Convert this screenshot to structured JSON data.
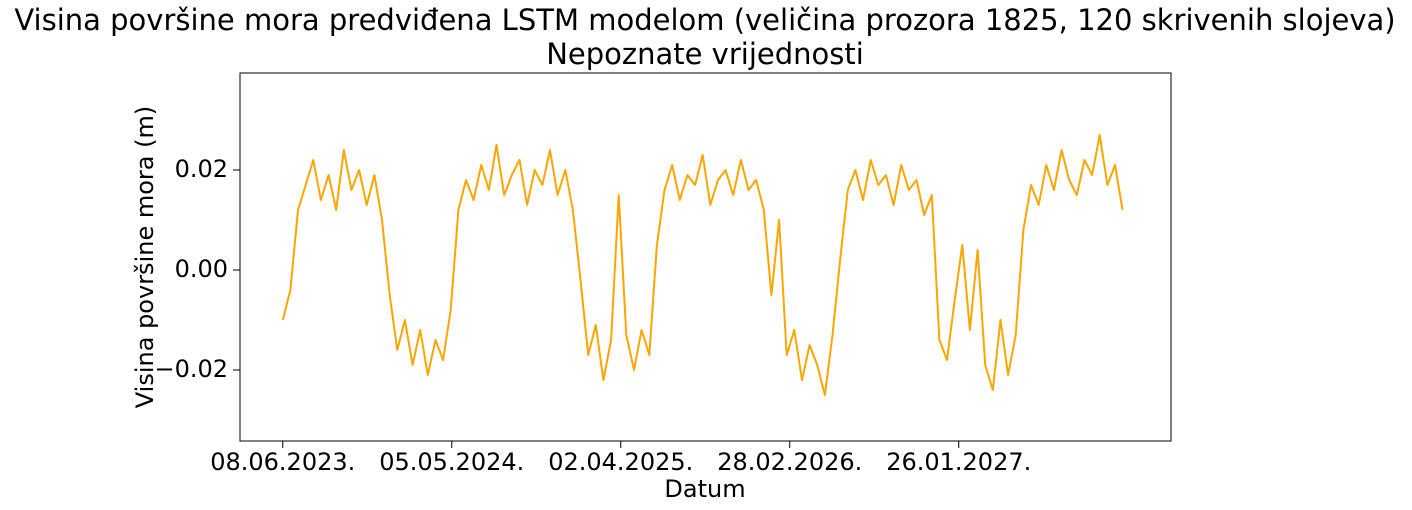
{
  "chart_data": {
    "type": "line",
    "title": "Visina površine mora predviđena LSTM modelom (veličina prozora 1825, 120 skrivenih slojeva)",
    "subtitle": "Nepoznate vrijednosti",
    "x_label": "Datum",
    "y_label": "Visina površine mora (m)",
    "x": [
      0,
      15,
      30,
      45,
      60,
      75,
      90,
      105,
      120,
      135,
      150,
      165,
      180,
      195,
      210,
      225,
      240,
      255,
      270,
      285,
      300,
      315,
      330,
      345,
      360,
      375,
      390,
      405,
      420,
      435,
      450,
      465,
      480,
      495,
      510,
      525,
      540,
      555,
      570,
      585,
      600,
      615,
      630,
      645,
      660,
      675,
      690,
      705,
      720,
      735,
      750,
      765,
      780,
      795,
      810,
      825,
      840,
      855,
      870,
      885,
      900,
      915,
      930,
      945,
      960,
      975,
      990,
      1005,
      1020,
      1035,
      1050,
      1065,
      1080,
      1095,
      1110,
      1125,
      1140,
      1155,
      1170,
      1185,
      1200,
      1215,
      1230,
      1245,
      1260,
      1275,
      1290,
      1305,
      1320,
      1335,
      1350,
      1365,
      1380,
      1395,
      1410,
      1425,
      1440,
      1455,
      1470,
      1485,
      1500,
      1515,
      1530,
      1545,
      1560,
      1575,
      1590,
      1605,
      1620,
      1635,
      1650
    ],
    "series": [
      {
        "color": "#ffa500",
        "values": [
          -0.01,
          -0.004,
          0.012,
          0.017,
          0.022,
          0.014,
          0.019,
          0.012,
          0.024,
          0.016,
          0.02,
          0.013,
          0.019,
          0.01,
          -0.005,
          -0.016,
          -0.01,
          -0.019,
          -0.012,
          -0.021,
          -0.014,
          -0.018,
          -0.008,
          0.012,
          0.018,
          0.014,
          0.021,
          0.016,
          0.025,
          0.015,
          0.019,
          0.022,
          0.013,
          0.02,
          0.017,
          0.024,
          0.015,
          0.02,
          0.012,
          -0.002,
          -0.017,
          -0.011,
          -0.022,
          -0.014,
          0.015,
          -0.013,
          -0.02,
          -0.012,
          -0.017,
          0.005,
          0.016,
          0.021,
          0.014,
          0.019,
          0.017,
          0.023,
          0.013,
          0.018,
          0.02,
          0.015,
          0.022,
          0.016,
          0.018,
          0.012,
          -0.005,
          0.01,
          -0.017,
          -0.012,
          -0.022,
          -0.015,
          -0.019,
          -0.025,
          -0.013,
          0.002,
          0.016,
          0.02,
          0.014,
          0.022,
          0.017,
          0.019,
          0.013,
          0.021,
          0.016,
          0.018,
          0.011,
          0.015,
          -0.014,
          -0.018,
          -0.006,
          0.005,
          -0.012,
          0.004,
          -0.019,
          -0.024,
          -0.01,
          -0.021,
          -0.013,
          0.008,
          0.017,
          0.013,
          0.021,
          0.016,
          0.024,
          0.018,
          0.015,
          0.022,
          0.019,
          0.027,
          0.017,
          0.021,
          0.012
        ]
      }
    ],
    "xlim": [
      -84,
      1745
    ],
    "xticks": [
      {
        "value": 0,
        "label": "08.06.2023."
      },
      {
        "value": 332,
        "label": "05.05.2024."
      },
      {
        "value": 664,
        "label": "02.04.2025."
      },
      {
        "value": 996,
        "label": "28.02.2026."
      },
      {
        "value": 1328,
        "label": "26.01.2027."
      }
    ],
    "ylim": [
      -0.0342,
      0.0394
    ],
    "yticks": [
      {
        "value": -0.02,
        "label": "−0.02"
      },
      {
        "value": 0,
        "label": "0.00"
      },
      {
        "value": 0.02,
        "label": "0.02"
      }
    ],
    "grid": false
  }
}
